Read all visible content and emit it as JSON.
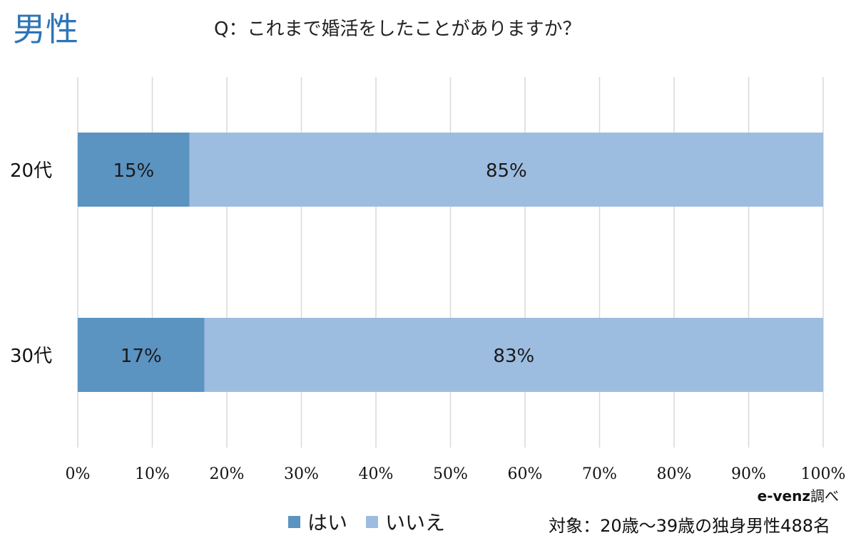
{
  "header": {
    "corner_title": "男性",
    "question": "Q：これまで婚活をしたことがありますか？"
  },
  "chart_data": {
    "type": "bar",
    "orientation": "horizontal",
    "stacked": true,
    "categories": [
      "20代",
      "30代"
    ],
    "series": [
      {
        "name": "はい",
        "values": [
          15,
          17
        ],
        "labels": [
          "15%",
          "17%"
        ],
        "color": "#5b93c1"
      },
      {
        "name": "いいえ",
        "values": [
          85,
          83
        ],
        "labels": [
          "85%",
          "83%"
        ],
        "color": "#9dbde0"
      }
    ],
    "xlim": [
      0,
      100
    ],
    "x_ticks": [
      "0%",
      "10%",
      "20%",
      "30%",
      "40%",
      "50%",
      "60%",
      "70%",
      "80%",
      "90%",
      "100%"
    ],
    "grid": "vertical",
    "legend_position": "bottom"
  },
  "footer": {
    "credit_bold": "e-venz",
    "credit_suffix": "調べ",
    "target": "対象：20歳〜39歳の独身男性488名"
  },
  "colors": {
    "title": "#2e75b6",
    "grid": "#d9d9d9"
  }
}
